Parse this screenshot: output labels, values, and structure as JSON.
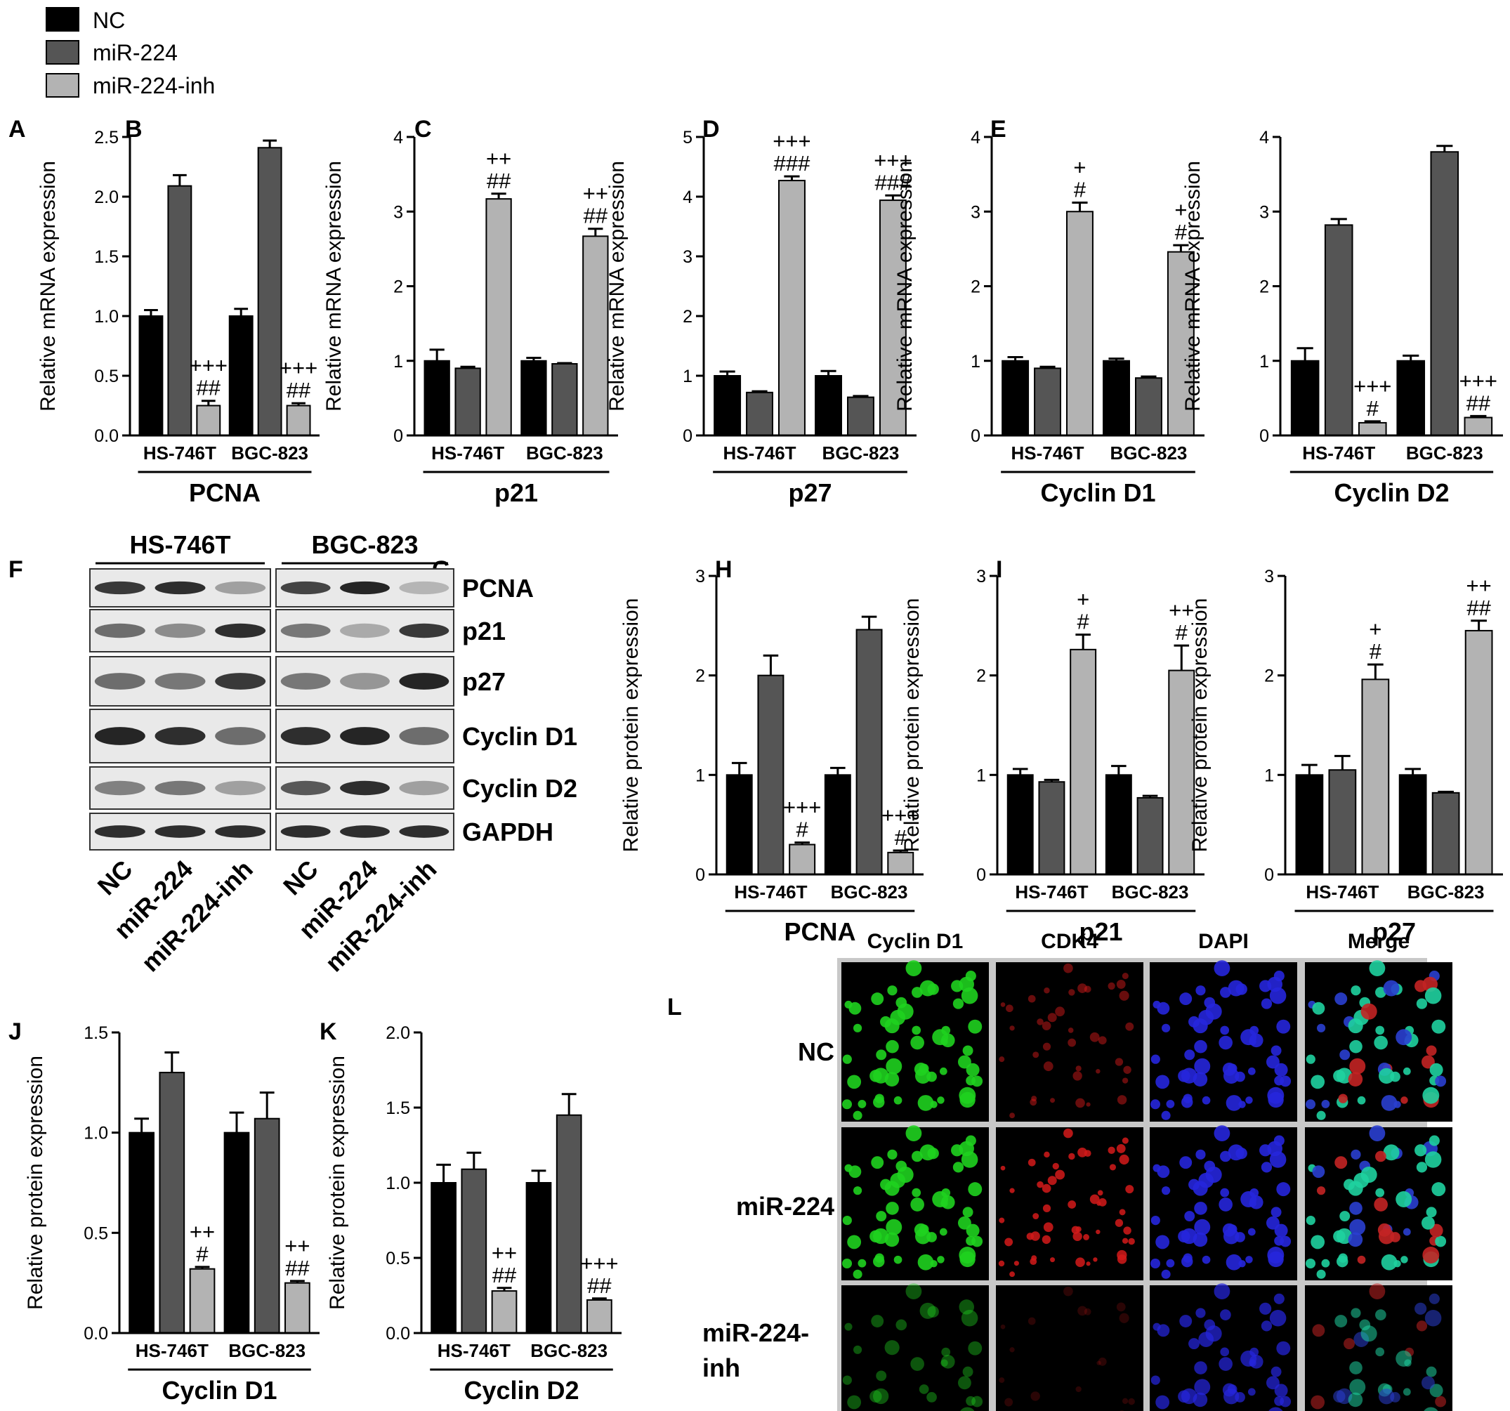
{
  "legend": [
    {
      "label": "NC",
      "color": "#000000"
    },
    {
      "label": "miR-224",
      "color": "#555555"
    },
    {
      "label": "miR-224-inh",
      "color": "#b3b3b3"
    }
  ],
  "colors": {
    "NC": "#000000",
    "miR-224": "#555555",
    "miR-224-inh": "#b3b3b3"
  },
  "chart_data": [
    {
      "panel": "A",
      "type": "bar",
      "title": "PCNA",
      "xlabel": "PCNA",
      "ylabel": "Relative mRNA expression",
      "categories": [
        "HS-746T",
        "BGC-823"
      ],
      "ylim": [
        0,
        2.5
      ],
      "yticks": [
        "0.0",
        "0.5",
        "1.0",
        "1.5",
        "2.0",
        "2.5"
      ],
      "series": [
        {
          "name": "NC",
          "values": [
            1.0,
            1.0
          ],
          "errors": [
            0.05,
            0.06
          ]
        },
        {
          "name": "miR-224",
          "values": [
            2.09,
            2.41
          ],
          "errors": [
            0.09,
            0.06
          ]
        },
        {
          "name": "miR-224-inh",
          "values": [
            0.25,
            0.25
          ],
          "errors": [
            0.04,
            0.02
          ]
        }
      ],
      "annotations": [
        {
          "category": "HS-746T",
          "series": "miR-224-inh",
          "lines": [
            "+++",
            "##"
          ]
        },
        {
          "category": "BGC-823",
          "series": "miR-224-inh",
          "lines": [
            "+++",
            "##"
          ]
        }
      ]
    },
    {
      "panel": "B",
      "type": "bar",
      "title": "p21",
      "xlabel": "p21",
      "ylabel": "Relative mRNA expression",
      "categories": [
        "HS-746T",
        "BGC-823"
      ],
      "ylim": [
        0,
        4
      ],
      "yticks": [
        "0",
        "1",
        "2",
        "3",
        "4"
      ],
      "series": [
        {
          "name": "NC",
          "values": [
            1.0,
            1.0
          ],
          "errors": [
            0.15,
            0.04
          ]
        },
        {
          "name": "miR-224",
          "values": [
            0.9,
            0.96
          ],
          "errors": [
            0.02,
            0.01
          ]
        },
        {
          "name": "miR-224-inh",
          "values": [
            3.17,
            2.67
          ],
          "errors": [
            0.07,
            0.1
          ]
        }
      ],
      "annotations": [
        {
          "category": "HS-746T",
          "series": "miR-224-inh",
          "lines": [
            "++",
            "##"
          ]
        },
        {
          "category": "BGC-823",
          "series": "miR-224-inh",
          "lines": [
            "++",
            "##"
          ]
        }
      ]
    },
    {
      "panel": "C",
      "type": "bar",
      "title": "p27",
      "xlabel": "p27",
      "ylabel": "Relative mRNA expression",
      "categories": [
        "HS-746T",
        "BGC-823"
      ],
      "ylim": [
        0,
        5
      ],
      "yticks": [
        "0",
        "1",
        "2",
        "3",
        "4",
        "5"
      ],
      "series": [
        {
          "name": "NC",
          "values": [
            1.0,
            1.0
          ],
          "errors": [
            0.07,
            0.08
          ]
        },
        {
          "name": "miR-224",
          "values": [
            0.72,
            0.64
          ],
          "errors": [
            0.02,
            0.02
          ]
        },
        {
          "name": "miR-224-inh",
          "values": [
            4.27,
            3.94
          ],
          "errors": [
            0.07,
            0.08
          ]
        }
      ],
      "annotations": [
        {
          "category": "HS-746T",
          "series": "miR-224-inh",
          "lines": [
            "+++",
            "###"
          ]
        },
        {
          "category": "BGC-823",
          "series": "miR-224-inh",
          "lines": [
            "+++",
            "###"
          ]
        }
      ]
    },
    {
      "panel": "D",
      "type": "bar",
      "title": "Cyclin D1",
      "xlabel": "Cyclin D1",
      "ylabel": "Relative mRNA expression",
      "categories": [
        "HS-746T",
        "BGC-823"
      ],
      "ylim": [
        0,
        4
      ],
      "yticks": [
        "0",
        "1",
        "2",
        "3",
        "4"
      ],
      "series": [
        {
          "name": "NC",
          "values": [
            1.0,
            1.0
          ],
          "errors": [
            0.05,
            0.03
          ]
        },
        {
          "name": "miR-224",
          "values": [
            0.9,
            0.77
          ],
          "errors": [
            0.02,
            0.02
          ]
        },
        {
          "name": "miR-224-inh",
          "values": [
            3.0,
            2.46
          ],
          "errors": [
            0.12,
            0.09
          ]
        }
      ],
      "annotations": [
        {
          "category": "HS-746T",
          "series": "miR-224-inh",
          "lines": [
            "+",
            "#"
          ]
        },
        {
          "category": "BGC-823",
          "series": "miR-224-inh",
          "lines": [
            "+",
            "#"
          ]
        }
      ]
    },
    {
      "panel": "E",
      "type": "bar",
      "title": "Cyclin D2",
      "xlabel": "Cyclin D2",
      "ylabel": "Relative mRNA expression",
      "categories": [
        "HS-746T",
        "BGC-823"
      ],
      "ylim": [
        0,
        4
      ],
      "yticks": [
        "0",
        "1",
        "2",
        "3",
        "4"
      ],
      "series": [
        {
          "name": "NC",
          "values": [
            1.0,
            1.0
          ],
          "errors": [
            0.17,
            0.07
          ]
        },
        {
          "name": "miR-224",
          "values": [
            2.82,
            3.8
          ],
          "errors": [
            0.08,
            0.08
          ]
        },
        {
          "name": "miR-224-inh",
          "values": [
            0.17,
            0.24
          ],
          "errors": [
            0.02,
            0.02
          ]
        }
      ],
      "annotations": [
        {
          "category": "HS-746T",
          "series": "miR-224-inh",
          "lines": [
            "+++",
            "#"
          ]
        },
        {
          "category": "BGC-823",
          "series": "miR-224-inh",
          "lines": [
            "+++",
            "##"
          ]
        }
      ]
    },
    {
      "panel": "G",
      "type": "bar",
      "title": "PCNA",
      "xlabel": "PCNA",
      "ylabel": "Relative protein expression",
      "categories": [
        "HS-746T",
        "BGC-823"
      ],
      "ylim": [
        0,
        3
      ],
      "yticks": [
        "0",
        "1",
        "2",
        "3"
      ],
      "series": [
        {
          "name": "NC",
          "values": [
            1.0,
            1.0
          ],
          "errors": [
            0.12,
            0.07
          ]
        },
        {
          "name": "miR-224",
          "values": [
            2.0,
            2.46
          ],
          "errors": [
            0.2,
            0.13
          ]
        },
        {
          "name": "miR-224-inh",
          "values": [
            0.3,
            0.22
          ],
          "errors": [
            0.02,
            0.02
          ]
        }
      ],
      "annotations": [
        {
          "category": "HS-746T",
          "series": "miR-224-inh",
          "lines": [
            "+++",
            "#"
          ]
        },
        {
          "category": "BGC-823",
          "series": "miR-224-inh",
          "lines": [
            "+++",
            "#"
          ]
        }
      ]
    },
    {
      "panel": "H",
      "type": "bar",
      "title": "p21",
      "xlabel": "p21",
      "ylabel": "Relative protein expression",
      "categories": [
        "HS-746T",
        "BGC-823"
      ],
      "ylim": [
        0,
        3
      ],
      "yticks": [
        "0",
        "1",
        "2",
        "3"
      ],
      "series": [
        {
          "name": "NC",
          "values": [
            1.0,
            1.0
          ],
          "errors": [
            0.06,
            0.09
          ]
        },
        {
          "name": "miR-224",
          "values": [
            0.93,
            0.77
          ],
          "errors": [
            0.02,
            0.02
          ]
        },
        {
          "name": "miR-224-inh",
          "values": [
            2.26,
            2.05
          ],
          "errors": [
            0.15,
            0.25
          ]
        }
      ],
      "annotations": [
        {
          "category": "HS-746T",
          "series": "miR-224-inh",
          "lines": [
            "+",
            "#"
          ]
        },
        {
          "category": "BGC-823",
          "series": "miR-224-inh",
          "lines": [
            "++",
            "#"
          ]
        }
      ]
    },
    {
      "panel": "I",
      "type": "bar",
      "title": "p27",
      "xlabel": "p27",
      "ylabel": "Relative protein expression",
      "categories": [
        "HS-746T",
        "BGC-823"
      ],
      "ylim": [
        0,
        3
      ],
      "yticks": [
        "0",
        "1",
        "2",
        "3"
      ],
      "series": [
        {
          "name": "NC",
          "values": [
            1.0,
            1.0
          ],
          "errors": [
            0.1,
            0.06
          ]
        },
        {
          "name": "miR-224",
          "values": [
            1.05,
            0.82
          ],
          "errors": [
            0.14,
            0.01
          ]
        },
        {
          "name": "miR-224-inh",
          "values": [
            1.96,
            2.45
          ],
          "errors": [
            0.15,
            0.1
          ]
        }
      ],
      "annotations": [
        {
          "category": "HS-746T",
          "series": "miR-224-inh",
          "lines": [
            "+",
            "#"
          ]
        },
        {
          "category": "BGC-823",
          "series": "miR-224-inh",
          "lines": [
            "++",
            "##"
          ]
        }
      ]
    },
    {
      "panel": "J",
      "type": "bar",
      "title": "Cyclin D1",
      "xlabel": "Cyclin D1",
      "ylabel": "Relative protein expression",
      "categories": [
        "HS-746T",
        "BGC-823"
      ],
      "ylim": [
        0,
        1.5
      ],
      "yticks": [
        "0.0",
        "0.5",
        "1.0",
        "1.5"
      ],
      "series": [
        {
          "name": "NC",
          "values": [
            1.0,
            1.0
          ],
          "errors": [
            0.07,
            0.1
          ]
        },
        {
          "name": "miR-224",
          "values": [
            1.3,
            1.07
          ],
          "errors": [
            0.1,
            0.13
          ]
        },
        {
          "name": "miR-224-inh",
          "values": [
            0.32,
            0.25
          ],
          "errors": [
            0.01,
            0.01
          ]
        }
      ],
      "annotations": [
        {
          "category": "HS-746T",
          "series": "miR-224-inh",
          "lines": [
            "++",
            "#"
          ]
        },
        {
          "category": "BGC-823",
          "series": "miR-224-inh",
          "lines": [
            "++",
            "##"
          ]
        }
      ]
    },
    {
      "panel": "K",
      "type": "bar",
      "title": "Cyclin D2",
      "xlabel": "Cyclin D2",
      "ylabel": "Relative protein expression",
      "categories": [
        "HS-746T",
        "BGC-823"
      ],
      "ylim": [
        0,
        2.0
      ],
      "yticks": [
        "0.0",
        "0.5",
        "1.0",
        "1.5",
        "2.0"
      ],
      "series": [
        {
          "name": "NC",
          "values": [
            1.0,
            1.0
          ],
          "errors": [
            0.12,
            0.08
          ]
        },
        {
          "name": "miR-224",
          "values": [
            1.09,
            1.45
          ],
          "errors": [
            0.11,
            0.14
          ]
        },
        {
          "name": "miR-224-inh",
          "values": [
            0.28,
            0.22
          ],
          "errors": [
            0.02,
            0.01
          ]
        }
      ],
      "annotations": [
        {
          "category": "HS-746T",
          "series": "miR-224-inh",
          "lines": [
            "++",
            "##"
          ]
        },
        {
          "category": "BGC-823",
          "series": "miR-224-inh",
          "lines": [
            "+++",
            "##"
          ]
        }
      ]
    }
  ],
  "western_blot": {
    "panel": "F",
    "cell_lines": [
      "HS-746T",
      "BGC-823"
    ],
    "lanes": [
      "NC",
      "miR-224",
      "miR-224-inh"
    ],
    "proteins": [
      "PCNA",
      "p21",
      "p27",
      "Cyclin D1",
      "Cyclin D2",
      "GAPDH"
    ]
  },
  "immunofluorescence": {
    "panel": "L",
    "channels": [
      {
        "label": "Cyclin D1",
        "color": "#1fd21f"
      },
      {
        "label": "CDK4",
        "color": "#d21a1a"
      },
      {
        "label": "DAPI",
        "color": "#2626dc"
      },
      {
        "label": "Merge",
        "color": "#1fd2a0"
      }
    ],
    "rows": [
      {
        "label": "NC",
        "intensity": [
          1.0,
          0.55,
          1.0,
          1.0
        ]
      },
      {
        "label": "miR-224",
        "intensity": [
          1.0,
          0.95,
          1.0,
          1.0
        ]
      },
      {
        "label": "miR-224-inh",
        "label_lines": [
          "miR-224-",
          "inh"
        ],
        "intensity": [
          0.45,
          0.12,
          0.8,
          0.6
        ]
      }
    ]
  }
}
